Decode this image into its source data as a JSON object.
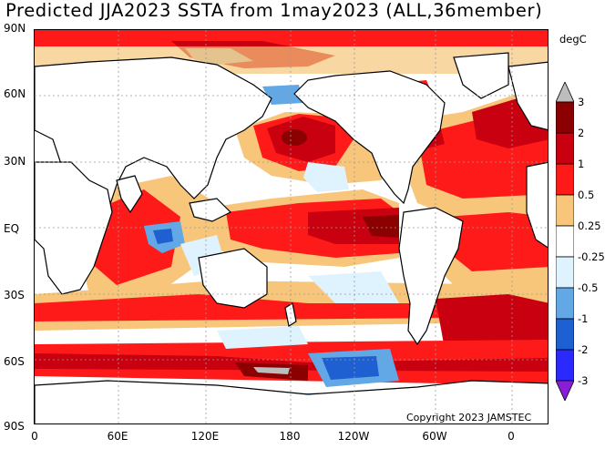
{
  "title": "Predicted JJA2023 SSTA from 1may2023 (ALL,36member)",
  "unit": "degC",
  "copyright": "Copyright 2023 JAMSTEC",
  "axes": {
    "lat_labels": [
      "90N",
      "60N",
      "30N",
      "EQ",
      "30S",
      "60S",
      "90S"
    ],
    "lon_labels": [
      "0",
      "60E",
      "120E",
      "180",
      "120W",
      "60W",
      "0"
    ]
  },
  "colorbar": {
    "labels": [
      "3",
      "2",
      "1",
      "0.5",
      "0.25",
      "-0.25",
      "-0.5",
      "-1",
      "-2",
      "-3"
    ],
    "colors": [
      "#bdbdbd",
      "#8b0000",
      "#c8000f",
      "#ff1a1a",
      "#f7c67a",
      "#ffffff",
      "#dff3ff",
      "#63a8e6",
      "#1e5fd1",
      "#2a2aff",
      "#8a1ed8"
    ]
  },
  "colors": {
    "ocean_zero": "#ffffff",
    "warm_weak": "#f7c67a",
    "warm_mid": "#ff1a1a",
    "warm_strong": "#c8000f",
    "warm_extreme": "#8b0000",
    "cool_weak": "#dff3ff",
    "cool_mid": "#63a8e6",
    "cool_strong": "#1e5fd1",
    "land": "#ffffff",
    "gray_cap": "#bdbdbd"
  }
}
